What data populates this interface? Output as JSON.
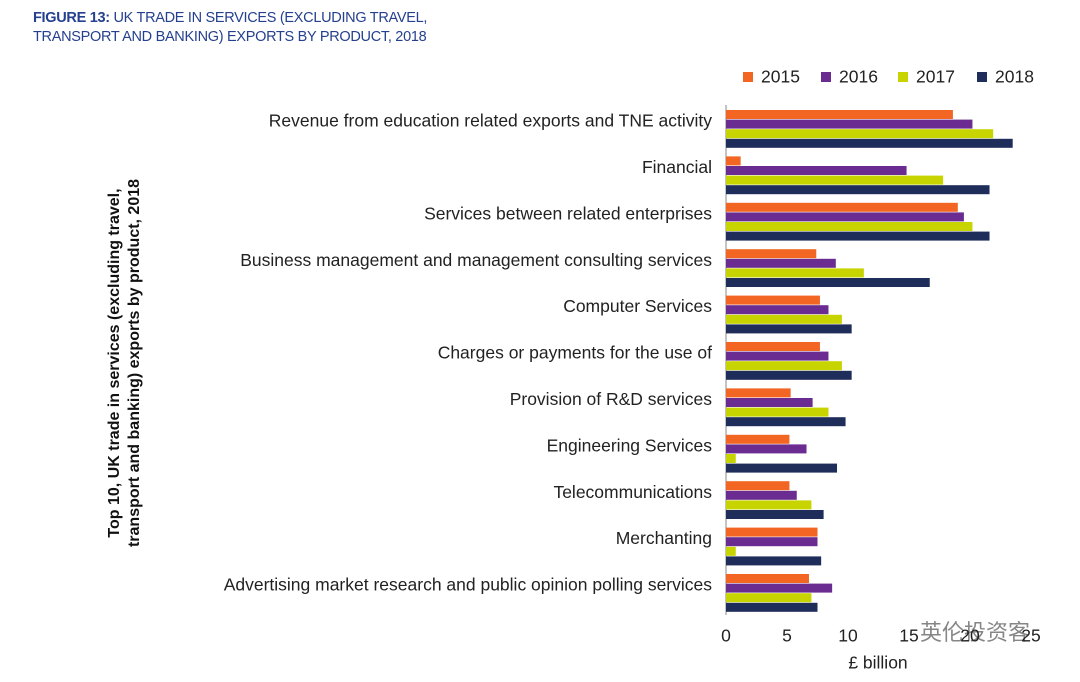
{
  "chart_data": {
    "type": "hbar",
    "figure_label": "FIGURE 13:",
    "title": "UK TRADE IN SERVICES (EXCLUDING TRAVEL, TRANSPORT AND BANKING) EXPORTS BY PRODUCT, 2018",
    "y_label": "Top 10, UK  trade in services (excluding travel, transport and banking) exports by product, 2018",
    "x_label": "£ billion",
    "watermark": "英伦投资客",
    "categories": [
      "Revenue from education related exports and TNE activity",
      "Financial",
      "Services between related enterprises",
      "Business management and management consulting services",
      "Computer Services",
      "Charges or payments for the use of",
      "Provision of R&D services",
      "Engineering Services",
      "Telecommunications",
      "Merchanting",
      "Advertising market research and public opinion polling services"
    ],
    "series": [
      {
        "name": "2015",
        "color": "#f26522",
        "values": [
          18.6,
          1.2,
          19.0,
          7.4,
          7.7,
          7.7,
          5.3,
          5.2,
          5.2,
          7.5,
          6.8
        ]
      },
      {
        "name": "2016",
        "color": "#6a2c91",
        "values": [
          20.2,
          14.8,
          19.5,
          9.0,
          8.4,
          8.4,
          7.1,
          6.6,
          5.8,
          7.5,
          8.7
        ]
      },
      {
        "name": "2017",
        "color": "#c8d400",
        "values": [
          21.9,
          17.8,
          20.2,
          11.3,
          9.5,
          9.5,
          8.4,
          0.8,
          7.0,
          0.8,
          7.0
        ]
      },
      {
        "name": "2018",
        "color": "#1f2d5a",
        "values": [
          23.5,
          21.6,
          21.6,
          16.7,
          10.3,
          10.3,
          9.8,
          9.1,
          8.0,
          7.8,
          7.5
        ]
      }
    ],
    "xlim": [
      0,
      25
    ],
    "xticks": [
      0,
      5,
      10,
      15,
      20,
      25
    ]
  }
}
